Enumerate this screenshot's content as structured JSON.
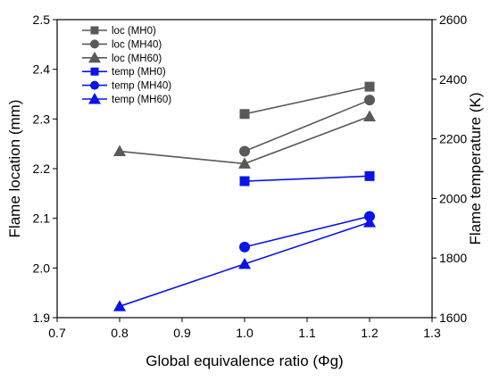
{
  "chart_data": {
    "type": "line",
    "title": "",
    "xlabel": "Global equivalence ratio (Φg)",
    "ylabel_left": "Flame location (mm)",
    "ylabel_right": "Flame temperature (K)",
    "xlim": [
      0.7,
      1.3
    ],
    "ylim_left": [
      1.9,
      2.5
    ],
    "ylim_right": [
      1600,
      2600
    ],
    "x_ticks": [
      "0.7",
      "0.8",
      "0.9",
      "1.0",
      "1.1",
      "1.2",
      "1.3"
    ],
    "y_left_ticks": [
      "1.9",
      "2.0",
      "2.1",
      "2.2",
      "2.3",
      "2.4",
      "2.5"
    ],
    "y_right_ticks": [
      "1600",
      "1800",
      "2000",
      "2200",
      "2400",
      "2600"
    ],
    "grid": false,
    "legend_position": "top-left",
    "series": [
      {
        "name": "loc (MH0)",
        "axis": "left",
        "color": "#595959",
        "marker": "square",
        "x": [
          1.0,
          1.2
        ],
        "y": [
          2.31,
          2.365
        ]
      },
      {
        "name": "loc (MH40)",
        "axis": "left",
        "color": "#595959",
        "marker": "circle",
        "x": [
          1.0,
          1.2
        ],
        "y": [
          2.235,
          2.338
        ]
      },
      {
        "name": "loc (MH60)",
        "axis": "left",
        "color": "#595959",
        "marker": "triangle",
        "x": [
          0.8,
          1.0,
          1.2
        ],
        "y": [
          2.235,
          2.21,
          2.305
        ]
      },
      {
        "name": "temp (MH0)",
        "axis": "right",
        "color": "#0a14e6",
        "marker": "square",
        "x": [
          1.0,
          1.2
        ],
        "y": [
          2058,
          2075
        ]
      },
      {
        "name": "temp (MH40)",
        "axis": "right",
        "color": "#0a14e6",
        "marker": "circle",
        "x": [
          1.0,
          1.2
        ],
        "y": [
          1837,
          1940
        ]
      },
      {
        "name": "temp (MH60)",
        "axis": "right",
        "color": "#0a14e6",
        "marker": "triangle",
        "x": [
          0.8,
          1.0,
          1.2
        ],
        "y": [
          1638,
          1780,
          1920
        ]
      }
    ]
  }
}
